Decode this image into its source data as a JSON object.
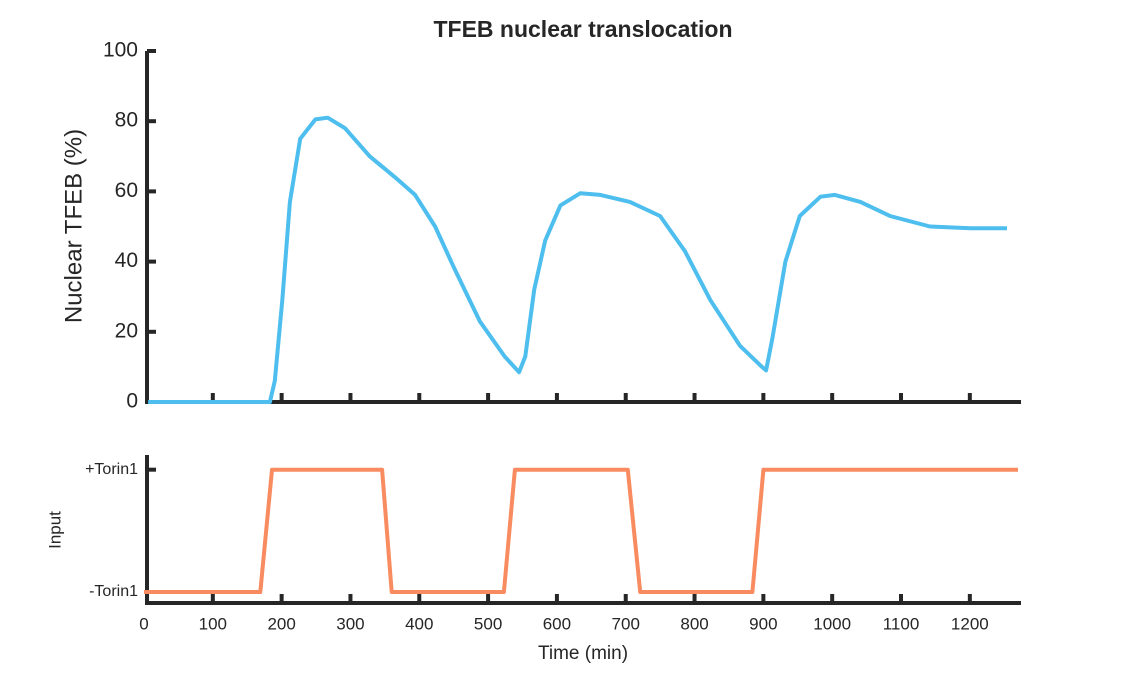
{
  "chart_data": [
    {
      "type": "line",
      "title": "TFEB nuclear translocation",
      "y_label": "Nuclear TFEB (%)",
      "xlim": [
        0,
        1270
      ],
      "xticks": [
        0,
        100,
        200,
        300,
        400,
        500,
        600,
        700,
        800,
        900,
        1000,
        1100,
        1200
      ],
      "ylim": [
        0,
        100
      ],
      "yticks": [
        0,
        20,
        40,
        60,
        80,
        100
      ],
      "series": [
        {
          "name": "Nuclear TFEB",
          "color": "#4dbeee",
          "x": [
            6,
            183,
            190,
            201,
            212,
            227,
            249,
            267,
            292,
            328,
            365,
            394,
            423,
            451,
            488,
            524,
            545,
            554,
            567,
            583,
            605,
            634,
            663,
            706,
            750,
            786,
            823,
            866,
            898,
            904,
            913,
            932,
            953,
            983,
            1004,
            1041,
            1084,
            1142,
            1201,
            1254
          ],
          "values": [
            0,
            0,
            6,
            29,
            57,
            75,
            80.5,
            81,
            78,
            70,
            64,
            59,
            50,
            38,
            23,
            13,
            8.5,
            13,
            32,
            46,
            56,
            59.5,
            59,
            57,
            53,
            43,
            29,
            16,
            10,
            9,
            18,
            40,
            53,
            58.5,
            59,
            57,
            53,
            50,
            49.5,
            49.5
          ]
        }
      ]
    },
    {
      "type": "line",
      "x_label": "Time (min)",
      "y_label": "Input",
      "xlim": [
        0,
        1270
      ],
      "xticks": [
        0,
        100,
        200,
        300,
        400,
        500,
        600,
        700,
        800,
        900,
        1000,
        1100,
        1200
      ],
      "ylim": [
        -0.09,
        1.12
      ],
      "yticks": [
        {
          "value": 0,
          "label": "-Torin1"
        },
        {
          "value": 1,
          "label": "+Torin1"
        }
      ],
      "series": [
        {
          "name": "Input",
          "color": "#f98b60",
          "x": [
            0,
            169,
            186,
            346,
            360,
            523,
            539,
            703,
            721,
            884,
            900,
            1270
          ],
          "values": [
            0,
            0,
            1,
            1,
            0,
            0,
            1,
            1,
            0,
            0,
            1,
            1
          ]
        }
      ]
    }
  ]
}
